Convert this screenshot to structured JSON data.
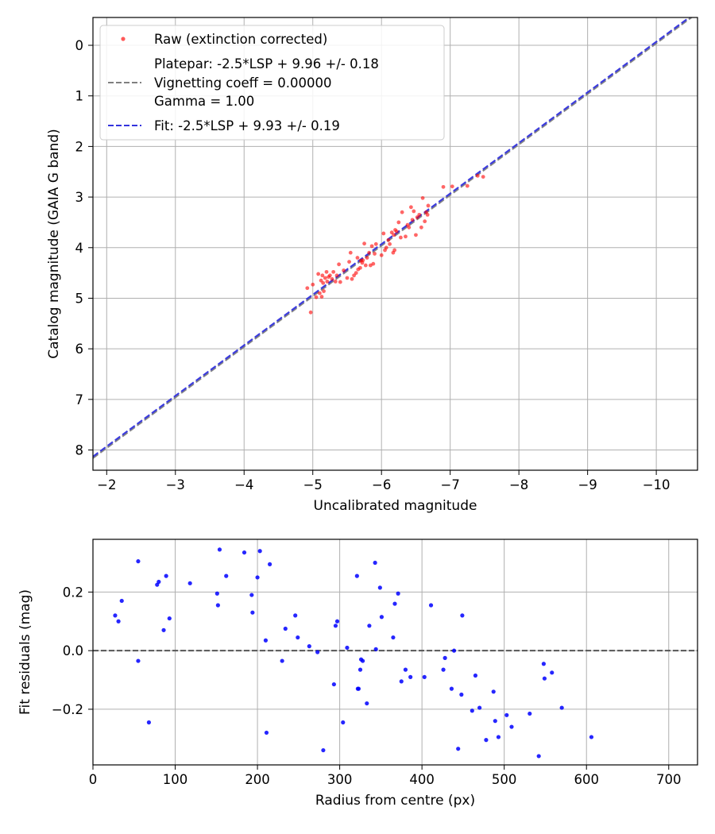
{
  "chart_data": [
    {
      "type": "scatter",
      "xlabel": "Uncalibrated magnitude",
      "ylabel": "Catalog magnitude (GAIA G band)",
      "xlim": [
        -1.8,
        -10.6
      ],
      "ylim": [
        8.4,
        -0.55
      ],
      "x_inverted": true,
      "y_inverted": true,
      "xticks": [
        -2,
        -3,
        -4,
        -5,
        -6,
        -7,
        -8,
        -9,
        -10
      ],
      "xtick_labels": [
        "−2",
        "−3",
        "−4",
        "−5",
        "−6",
        "−7",
        "−8",
        "−9",
        "−10"
      ],
      "yticks": [
        0,
        1,
        2,
        3,
        4,
        5,
        6,
        7,
        8
      ],
      "ytick_labels": [
        "0",
        "1",
        "2",
        "3",
        "4",
        "5",
        "6",
        "7",
        "8"
      ],
      "grid": true,
      "legend_position": "top-left",
      "legend": [
        {
          "label": "Raw (extinction corrected)",
          "type": "marker",
          "color": "#ff0000"
        },
        {
          "label": "Platepar: -2.5*LSP + 9.96 +/- 0.18",
          "type": "dashed",
          "color": "#808080"
        },
        {
          "label": "Vignetting coeff = 0.00000",
          "type": "text"
        },
        {
          "label": "Gamma = 1.00",
          "type": "text"
        },
        {
          "label": "Fit: -2.5*LSP + 9.93 +/- 0.19",
          "type": "dashed",
          "color": "#3333dd"
        }
      ],
      "series": [
        {
          "name": "Raw (extinction corrected)",
          "kind": "scatter",
          "color": "#ff0000",
          "points": [
            [
              -4.92,
              4.8
            ],
            [
              -4.97,
              5.28
            ],
            [
              -5.0,
              4.73
            ],
            [
              -5.05,
              4.98
            ],
            [
              -5.08,
              4.52
            ],
            [
              -5.1,
              4.9
            ],
            [
              -5.12,
              4.65
            ],
            [
              -5.13,
              4.97
            ],
            [
              -5.14,
              4.55
            ],
            [
              -5.15,
              4.7
            ],
            [
              -5.16,
              4.86
            ],
            [
              -5.18,
              4.6
            ],
            [
              -5.2,
              4.48
            ],
            [
              -5.21,
              4.67
            ],
            [
              -5.23,
              4.58
            ],
            [
              -5.25,
              4.55
            ],
            [
              -5.28,
              4.62
            ],
            [
              -5.3,
              4.48
            ],
            [
              -5.33,
              4.67
            ],
            [
              -5.35,
              4.55
            ],
            [
              -5.38,
              4.33
            ],
            [
              -5.4,
              4.68
            ],
            [
              -5.45,
              4.45
            ],
            [
              -5.5,
              4.6
            ],
            [
              -5.53,
              4.28
            ],
            [
              -5.55,
              4.1
            ],
            [
              -5.57,
              4.62
            ],
            [
              -5.6,
              4.55
            ],
            [
              -5.63,
              4.5
            ],
            [
              -5.65,
              4.2
            ],
            [
              -5.66,
              4.43
            ],
            [
              -5.69,
              4.4
            ],
            [
              -5.7,
              4.26
            ],
            [
              -5.72,
              4.3
            ],
            [
              -5.73,
              4.25
            ],
            [
              -5.75,
              3.92
            ],
            [
              -5.77,
              4.35
            ],
            [
              -5.79,
              4.2
            ],
            [
              -5.82,
              4.1
            ],
            [
              -5.84,
              4.35
            ],
            [
              -5.86,
              3.97
            ],
            [
              -5.88,
              4.32
            ],
            [
              -5.9,
              4.12
            ],
            [
              -5.92,
              3.93
            ],
            [
              -6.0,
              4.15
            ],
            [
              -6.03,
              3.72
            ],
            [
              -6.05,
              4.05
            ],
            [
              -6.07,
              4.0
            ],
            [
              -6.1,
              3.85
            ],
            [
              -6.12,
              3.93
            ],
            [
              -6.15,
              3.7
            ],
            [
              -6.17,
              4.1
            ],
            [
              -6.18,
              3.75
            ],
            [
              -6.19,
              4.05
            ],
            [
              -6.2,
              3.65
            ],
            [
              -6.22,
              3.68
            ],
            [
              -6.25,
              3.5
            ],
            [
              -6.28,
              3.8
            ],
            [
              -6.3,
              3.3
            ],
            [
              -6.35,
              3.78
            ],
            [
              -6.38,
              3.55
            ],
            [
              -6.4,
              3.6
            ],
            [
              -6.43,
              3.2
            ],
            [
              -6.45,
              3.45
            ],
            [
              -6.47,
              3.28
            ],
            [
              -6.5,
              3.75
            ],
            [
              -6.52,
              3.4
            ],
            [
              -6.55,
              3.35
            ],
            [
              -6.58,
              3.6
            ],
            [
              -6.6,
              3.02
            ],
            [
              -6.63,
              3.48
            ],
            [
              -6.65,
              3.3
            ],
            [
              -6.67,
              3.35
            ],
            [
              -6.68,
              3.17
            ],
            [
              -6.9,
              2.8
            ],
            [
              -7.03,
              2.79
            ],
            [
              -7.25,
              2.78
            ],
            [
              -7.4,
              2.58
            ],
            [
              -7.48,
              2.6
            ]
          ]
        },
        {
          "name": "Platepar: -2.5*LSP + 9.96 +/- 0.18",
          "kind": "dashed-line",
          "color": "#808080",
          "x": [
            -1.8,
            -10.6
          ],
          "y": [
            8.16,
            -0.64
          ]
        },
        {
          "name": "Fit: -2.5*LSP + 9.93 +/- 0.19",
          "kind": "dashed-line",
          "color": "#3333dd",
          "x": [
            -1.8,
            -10.6
          ],
          "y": [
            8.13,
            -0.67
          ]
        }
      ]
    },
    {
      "type": "scatter",
      "xlabel": "Radius from centre (px)",
      "ylabel": "Fit residuals (mag)",
      "xlim": [
        0,
        735
      ],
      "ylim": [
        -0.39,
        0.38
      ],
      "xticks": [
        0,
        100,
        200,
        300,
        400,
        500,
        600,
        700
      ],
      "xtick_labels": [
        "0",
        "100",
        "200",
        "300",
        "400",
        "500",
        "600",
        "700"
      ],
      "yticks": [
        0.2,
        0.0,
        -0.2
      ],
      "ytick_labels": [
        "0.2",
        "0.0",
        "−0.2"
      ],
      "grid": true,
      "reference_line": {
        "y": 0,
        "style": "dashed",
        "color": "#555555"
      },
      "series": [
        {
          "kind": "scatter",
          "color": "#0000ff",
          "points": [
            [
              27,
              0.12
            ],
            [
              31,
              0.1
            ],
            [
              35,
              0.17
            ],
            [
              55,
              0.305
            ],
            [
              55,
              -0.035
            ],
            [
              68,
              -0.245
            ],
            [
              78,
              0.225
            ],
            [
              80,
              0.235
            ],
            [
              86,
              0.07
            ],
            [
              89,
              0.255
            ],
            [
              93,
              0.11
            ],
            [
              118,
              0.23
            ],
            [
              151,
              0.195
            ],
            [
              152,
              0.155
            ],
            [
              154,
              0.345
            ],
            [
              162,
              0.255
            ],
            [
              184,
              0.335
            ],
            [
              193,
              0.19
            ],
            [
              194,
              0.13
            ],
            [
              200,
              0.25
            ],
            [
              203,
              0.34
            ],
            [
              210,
              0.035
            ],
            [
              211,
              -0.28
            ],
            [
              215,
              0.295
            ],
            [
              230,
              -0.035
            ],
            [
              234,
              0.075
            ],
            [
              246,
              0.12
            ],
            [
              249,
              0.045
            ],
            [
              263,
              0.015
            ],
            [
              273,
              -0.005
            ],
            [
              280,
              -0.34
            ],
            [
              293,
              -0.115
            ],
            [
              295,
              0.085
            ],
            [
              297,
              0.1
            ],
            [
              304,
              -0.245
            ],
            [
              309,
              0.01
            ],
            [
              321,
              0.255
            ],
            [
              322,
              -0.13
            ],
            [
              323,
              -0.13
            ],
            [
              325,
              -0.065
            ],
            [
              326,
              -0.03
            ],
            [
              328,
              -0.035
            ],
            [
              333,
              -0.18
            ],
            [
              336,
              0.085
            ],
            [
              343,
              0.3
            ],
            [
              344,
              0.005
            ],
            [
              349,
              0.215
            ],
            [
              351,
              0.115
            ],
            [
              365,
              0.045
            ],
            [
              367,
              0.16
            ],
            [
              371,
              0.195
            ],
            [
              375,
              -0.105
            ],
            [
              380,
              -0.065
            ],
            [
              386,
              -0.09
            ],
            [
              403,
              -0.09
            ],
            [
              411,
              0.155
            ],
            [
              426,
              -0.065
            ],
            [
              428,
              -0.025
            ],
            [
              436,
              -0.13
            ],
            [
              439,
              0.0
            ],
            [
              444,
              -0.335
            ],
            [
              448,
              -0.15
            ],
            [
              449,
              0.12
            ],
            [
              461,
              -0.205
            ],
            [
              465,
              -0.085
            ],
            [
              470,
              -0.195
            ],
            [
              478,
              -0.305
            ],
            [
              487,
              -0.14
            ],
            [
              489,
              -0.24
            ],
            [
              493,
              -0.295
            ],
            [
              503,
              -0.22
            ],
            [
              509,
              -0.26
            ],
            [
              531,
              -0.215
            ],
            [
              542,
              -0.36
            ],
            [
              548,
              -0.045
            ],
            [
              549,
              -0.095
            ],
            [
              558,
              -0.075
            ],
            [
              570,
              -0.195
            ],
            [
              606,
              -0.295
            ]
          ]
        }
      ]
    }
  ]
}
